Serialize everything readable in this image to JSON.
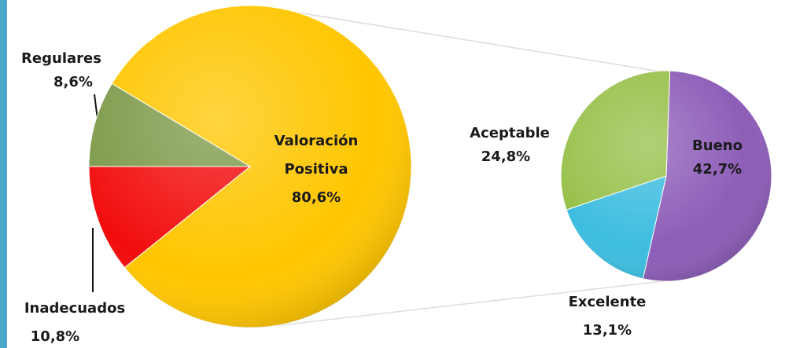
{
  "chart_data": [
    {
      "type": "pie",
      "categories": [
        "Valoración Positiva",
        "Inadecuados",
        "Regulares"
      ],
      "values": [
        80.6,
        10.8,
        8.6
      ],
      "value_labels": [
        "80,6%",
        "10,8%",
        "8,6%"
      ],
      "colors": [
        "#ffc600",
        "#f20d0d",
        "#7d9a49"
      ]
    },
    {
      "type": "pie",
      "categories": [
        "Bueno",
        "Excelente",
        "Aceptable"
      ],
      "values": [
        42.7,
        13.1,
        24.8
      ],
      "value_labels": [
        "42,7%",
        "13,1%",
        "24,8%"
      ],
      "colors": [
        "#8d5db8",
        "#3dbde0",
        "#98c04a"
      ]
    }
  ]
}
